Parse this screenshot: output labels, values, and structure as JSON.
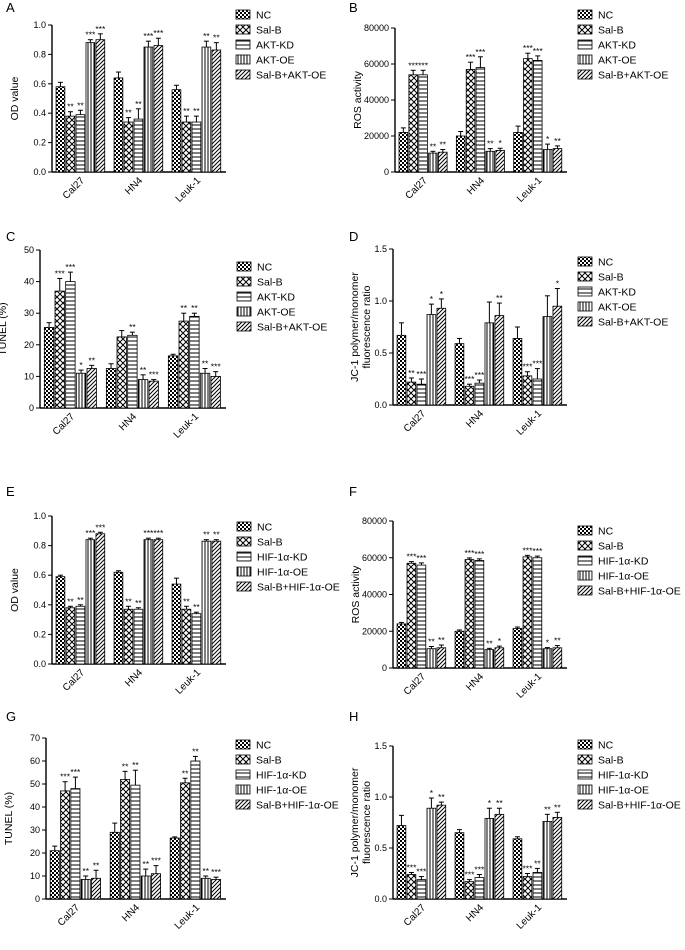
{
  "figure": {
    "legend_set_1": [
      "NC",
      "Sal-B",
      "AKT-KD",
      "AKT-OE",
      "Sal-B+AKT-OE"
    ],
    "legend_set_2": [
      "NC",
      "Sal-B",
      "HIF-1α-KD",
      "HIF-1α-OE",
      "Sal-B+HIF-1α-OE"
    ],
    "pattern_colors": {
      "ink": "#000000",
      "background": "#ffffff"
    }
  },
  "chart_data": [
    {
      "panel": "A",
      "type": "bar",
      "ylabel": "OD value",
      "ylim": [
        0,
        1.0
      ],
      "yticks": [
        "0.0",
        "0.2",
        "0.4",
        "0.6",
        "0.8",
        "1.0"
      ],
      "categories": [
        "Cal27",
        "HN4",
        "Leuk-1"
      ],
      "legend_set": 1,
      "series": [
        {
          "name": "NC",
          "values": [
            0.58,
            0.64,
            0.56
          ],
          "errors": [
            0.03,
            0.04,
            0.03
          ],
          "sig": [
            "",
            "",
            ""
          ]
        },
        {
          "name": "Sal-B",
          "values": [
            0.38,
            0.34,
            0.34
          ],
          "errors": [
            0.03,
            0.03,
            0.04
          ],
          "sig": [
            "**",
            "**",
            "**"
          ]
        },
        {
          "name": "AKT-KD",
          "values": [
            0.39,
            0.36,
            0.34
          ],
          "errors": [
            0.03,
            0.07,
            0.04
          ],
          "sig": [
            "**",
            "**",
            "**"
          ]
        },
        {
          "name": "AKT-OE",
          "values": [
            0.88,
            0.85,
            0.85
          ],
          "errors": [
            0.02,
            0.04,
            0.04
          ],
          "sig": [
            "***",
            "***",
            "**"
          ]
        },
        {
          "name": "Sal-B+AKT-OE",
          "values": [
            0.9,
            0.86,
            0.83
          ],
          "errors": [
            0.04,
            0.05,
            0.05
          ],
          "sig": [
            "***",
            "***",
            "**"
          ]
        }
      ]
    },
    {
      "panel": "B",
      "type": "bar",
      "ylabel": "ROS activity",
      "ylim": [
        0,
        80000
      ],
      "yticks": [
        "0",
        "20000",
        "40000",
        "60000",
        "80000"
      ],
      "categories": [
        "Cal27",
        "HN4",
        "Leuk-1"
      ],
      "legend_set": 1,
      "series": [
        {
          "name": "NC",
          "values": [
            22000,
            20000,
            22000
          ],
          "errors": [
            2500,
            2500,
            3500
          ],
          "sig": [
            "",
            "",
            ""
          ]
        },
        {
          "name": "Sal-B",
          "values": [
            54000,
            57000,
            63000
          ],
          "errors": [
            2500,
            4000,
            3000
          ],
          "sig": [
            "***",
            "***",
            "***"
          ]
        },
        {
          "name": "AKT-KD",
          "values": [
            54000,
            58000,
            62000
          ],
          "errors": [
            2500,
            6000,
            2500
          ],
          "sig": [
            "***",
            "***",
            "***"
          ]
        },
        {
          "name": "AKT-OE",
          "values": [
            10500,
            11500,
            12500
          ],
          "errors": [
            1000,
            1500,
            3000
          ],
          "sig": [
            "**",
            "**",
            "*"
          ]
        },
        {
          "name": "Sal-B+AKT-OE",
          "values": [
            11000,
            12000,
            13000
          ],
          "errors": [
            1500,
            1200,
            1500
          ],
          "sig": [
            "**",
            "*",
            "**"
          ]
        }
      ]
    },
    {
      "panel": "C",
      "type": "bar",
      "ylabel": "TUNEL (%)",
      "ylim": [
        0,
        50
      ],
      "yticks": [
        "0",
        "10",
        "20",
        "30",
        "40",
        "50"
      ],
      "categories": [
        "Cal27",
        "HN4",
        "Leuk-1"
      ],
      "legend_set": 1,
      "series": [
        {
          "name": "NC",
          "values": [
            25.5,
            12.5,
            16.5
          ],
          "errors": [
            1.5,
            1.5,
            0.5
          ],
          "sig": [
            "",
            "",
            ""
          ]
        },
        {
          "name": "Sal-B",
          "values": [
            37,
            22.5,
            27.5
          ],
          "errors": [
            4,
            2,
            2.5
          ],
          "sig": [
            "***",
            "",
            "**"
          ]
        },
        {
          "name": "AKT-KD",
          "values": [
            40,
            23,
            29
          ],
          "errors": [
            3,
            1,
            1
          ],
          "sig": [
            "***",
            "**",
            "**"
          ]
        },
        {
          "name": "AKT-OE",
          "values": [
            11,
            9,
            11
          ],
          "errors": [
            1,
            1.5,
            1.5
          ],
          "sig": [
            "*",
            "**",
            "**"
          ]
        },
        {
          "name": "Sal-B+AKT-OE",
          "values": [
            12.5,
            8.5,
            10
          ],
          "errors": [
            1,
            0.5,
            1.5
          ],
          "sig": [
            "**",
            "***",
            "***"
          ]
        }
      ]
    },
    {
      "panel": "D",
      "type": "bar",
      "ylabel": "JC-1 polymer/monomer fluorescence ratio",
      "ylim": [
        0,
        1.5
      ],
      "yticks": [
        "0.0",
        "0.5",
        "1.0",
        "1.5"
      ],
      "categories": [
        "Cal27",
        "HN4",
        "Leuk-1"
      ],
      "legend_set": 1,
      "series": [
        {
          "name": "NC",
          "values": [
            0.67,
            0.59,
            0.64
          ],
          "errors": [
            0.12,
            0.05,
            0.11
          ],
          "sig": [
            "",
            "",
            ""
          ]
        },
        {
          "name": "Sal-B",
          "values": [
            0.22,
            0.18,
            0.28
          ],
          "errors": [
            0.04,
            0.02,
            0.04
          ],
          "sig": [
            "**",
            "***",
            "***"
          ]
        },
        {
          "name": "AKT-KD",
          "values": [
            0.2,
            0.21,
            0.25
          ],
          "errors": [
            0.05,
            0.03,
            0.1
          ],
          "sig": [
            "***",
            "***",
            "***"
          ]
        },
        {
          "name": "AKT-OE",
          "values": [
            0.87,
            0.79,
            0.85
          ],
          "errors": [
            0.1,
            0.2,
            0.2
          ],
          "sig": [
            "*",
            "",
            ""
          ]
        },
        {
          "name": "Sal-B+AKT-OE",
          "values": [
            0.93,
            0.86,
            0.95
          ],
          "errors": [
            0.09,
            0.12,
            0.17
          ],
          "sig": [
            "*",
            "**",
            "*"
          ]
        }
      ]
    },
    {
      "panel": "E",
      "type": "bar",
      "ylabel": "OD value",
      "ylim": [
        0,
        1.0
      ],
      "yticks": [
        "0.0",
        "0.2",
        "0.4",
        "0.6",
        "0.8",
        "1.0"
      ],
      "categories": [
        "Cal27",
        "HN4",
        "Leuk-1"
      ],
      "legend_set": 2,
      "series": [
        {
          "name": "NC",
          "values": [
            0.59,
            0.62,
            0.54
          ],
          "errors": [
            0.01,
            0.01,
            0.04
          ],
          "sig": [
            "",
            "",
            ""
          ]
        },
        {
          "name": "Sal-B",
          "values": [
            0.38,
            0.37,
            0.37
          ],
          "errors": [
            0.01,
            0.02,
            0.02
          ],
          "sig": [
            "**",
            "**",
            "**"
          ]
        },
        {
          "name": "HIF-1α-KD",
          "values": [
            0.39,
            0.37,
            0.34
          ],
          "errors": [
            0.01,
            0.01,
            0.01
          ],
          "sig": [
            "**",
            "**",
            "**"
          ]
        },
        {
          "name": "HIF-1α-OE",
          "values": [
            0.84,
            0.84,
            0.83
          ],
          "errors": [
            0.01,
            0.01,
            0.01
          ],
          "sig": [
            "***",
            "***",
            "**"
          ]
        },
        {
          "name": "Sal-B+HIF-1α-OE",
          "values": [
            0.88,
            0.84,
            0.83
          ],
          "errors": [
            0.01,
            0.01,
            0.01
          ],
          "sig": [
            "***",
            "***",
            "**"
          ]
        }
      ]
    },
    {
      "panel": "F",
      "type": "bar",
      "ylabel": "ROS activity",
      "ylim": [
        0,
        80000
      ],
      "yticks": [
        "0",
        "20000",
        "40000",
        "60000",
        "80000"
      ],
      "categories": [
        "Cal27",
        "HN4",
        "Leuk-1"
      ],
      "legend_set": 2,
      "series": [
        {
          "name": "NC",
          "values": [
            24000,
            20000,
            21500
          ],
          "errors": [
            800,
            700,
            800
          ],
          "sig": [
            "",
            "",
            ""
          ]
        },
        {
          "name": "Sal-B",
          "values": [
            57000,
            59000,
            60500
          ],
          "errors": [
            900,
            900,
            800
          ],
          "sig": [
            "***",
            "***",
            "***"
          ]
        },
        {
          "name": "HIF-1α-KD",
          "values": [
            56000,
            58500,
            60000
          ],
          "errors": [
            1200,
            900,
            900
          ],
          "sig": [
            "***",
            "***",
            "***"
          ]
        },
        {
          "name": "HIF-1α-OE",
          "values": [
            10500,
            10000,
            10500
          ],
          "errors": [
            1200,
            700,
            600
          ],
          "sig": [
            "**",
            "**",
            "*"
          ]
        },
        {
          "name": "Sal-B+HIF-1α-OE",
          "values": [
            11000,
            11000,
            11000
          ],
          "errors": [
            1500,
            900,
            1200
          ],
          "sig": [
            "**",
            "*",
            "**"
          ]
        }
      ]
    },
    {
      "panel": "G",
      "type": "bar",
      "ylabel": "TUNEL (%)",
      "ylim": [
        0,
        70
      ],
      "yticks": [
        "0",
        "10",
        "20",
        "30",
        "40",
        "50",
        "60",
        "70"
      ],
      "categories": [
        "Cal27",
        "HN4",
        "Leuk-1"
      ],
      "legend_set": 2,
      "series": [
        {
          "name": "NC",
          "values": [
            21,
            29,
            26.5
          ],
          "errors": [
            2,
            4,
            0.5
          ],
          "sig": [
            "",
            "",
            ""
          ]
        },
        {
          "name": "Sal-B",
          "values": [
            47,
            52,
            50.5
          ],
          "errors": [
            4,
            3.5,
            2
          ],
          "sig": [
            "***",
            "**",
            "**"
          ]
        },
        {
          "name": "HIF-1α-KD",
          "values": [
            48,
            49.5,
            60
          ],
          "errors": [
            5,
            6.5,
            2
          ],
          "sig": [
            "***",
            "**",
            "**"
          ]
        },
        {
          "name": "HIF-1α-OE",
          "values": [
            8.5,
            10,
            9
          ],
          "errors": [
            1.5,
            3,
            1
          ],
          "sig": [
            "**",
            "**",
            "**"
          ]
        },
        {
          "name": "Sal-B+HIF-1α-OE",
          "values": [
            9,
            11,
            8.5
          ],
          "errors": [
            3.5,
            3.5,
            1
          ],
          "sig": [
            "**",
            "***",
            "***"
          ]
        }
      ]
    },
    {
      "panel": "H",
      "type": "bar",
      "ylabel": "JC-1 polymer/monomer fluorescence ratio",
      "ylim": [
        0,
        1.5
      ],
      "yticks": [
        "0.0",
        "0.5",
        "1.0",
        "1.5"
      ],
      "categories": [
        "Cal27",
        "HN4",
        "Leuk-1"
      ],
      "legend_set": 2,
      "series": [
        {
          "name": "NC",
          "values": [
            0.72,
            0.65,
            0.59
          ],
          "errors": [
            0.1,
            0.03,
            0.02
          ],
          "sig": [
            "",
            "",
            ""
          ]
        },
        {
          "name": "Sal-B",
          "values": [
            0.24,
            0.17,
            0.22
          ],
          "errors": [
            0.02,
            0.02,
            0.03
          ],
          "sig": [
            "***",
            "***",
            "***"
          ]
        },
        {
          "name": "HIF-1α-KD",
          "values": [
            0.19,
            0.21,
            0.26
          ],
          "errors": [
            0.03,
            0.03,
            0.04
          ],
          "sig": [
            "***",
            "***",
            "**"
          ]
        },
        {
          "name": "HIF-1α-OE",
          "values": [
            0.89,
            0.79,
            0.76
          ],
          "errors": [
            0.1,
            0.1,
            0.07
          ],
          "sig": [
            "*",
            "*",
            "**"
          ]
        },
        {
          "name": "Sal-B+HIF-1α-OE",
          "values": [
            0.92,
            0.83,
            0.8
          ],
          "errors": [
            0.03,
            0.06,
            0.05
          ],
          "sig": [
            "**",
            "**",
            "**"
          ]
        }
      ]
    }
  ]
}
